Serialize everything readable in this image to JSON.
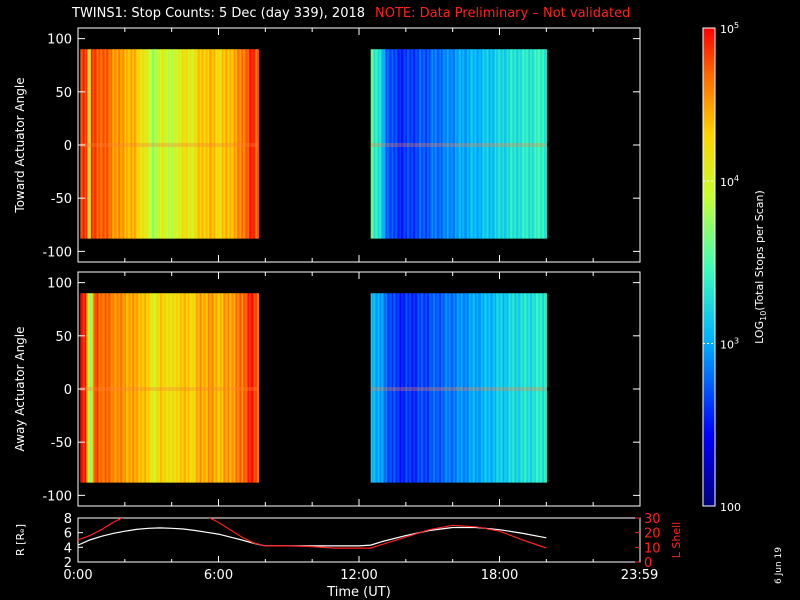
{
  "header": {
    "title": "TWINS1: Stop Counts:  5 Dec (day 339), 2018",
    "note": "NOTE: Data Preliminary – Not validated"
  },
  "footer": {
    "date_stamp": "6 Jun 19"
  },
  "colors": {
    "background": "#000000",
    "axes": "#ffffff",
    "note": "#ff2020",
    "lshell": "#ff2020",
    "radius": "#ffffff"
  },
  "chart_data": [
    {
      "type": "heatmap",
      "ylabel": "Toward Actuator Angle",
      "ylim": [
        -110,
        110
      ],
      "y_ticks": [
        100,
        50,
        0,
        -50,
        -100
      ],
      "xlim": [
        0,
        24
      ],
      "y_data_range": [
        -88,
        90
      ],
      "segments": [
        {
          "t_start": 0.1,
          "t_end": 7.7,
          "profile": [
            [
              0.1,
              0.92
            ],
            [
              0.35,
              0.96
            ],
            [
              0.45,
              0.6
            ],
            [
              0.55,
              0.95
            ],
            [
              0.8,
              0.9
            ],
            [
              1.0,
              0.93
            ],
            [
              1.3,
              0.88
            ],
            [
              1.6,
              0.85
            ],
            [
              2.0,
              0.82
            ],
            [
              2.4,
              0.8
            ],
            [
              2.8,
              0.72
            ],
            [
              3.2,
              0.6
            ],
            [
              3.6,
              0.7
            ],
            [
              4.0,
              0.62
            ],
            [
              4.4,
              0.74
            ],
            [
              4.8,
              0.7
            ],
            [
              5.2,
              0.78
            ],
            [
              5.6,
              0.8
            ],
            [
              6.0,
              0.76
            ],
            [
              6.4,
              0.8
            ],
            [
              6.8,
              0.84
            ],
            [
              7.0,
              0.88
            ],
            [
              7.2,
              0.92
            ],
            [
              7.4,
              0.96
            ],
            [
              7.7,
              0.9
            ]
          ]
        },
        {
          "t_start": 12.5,
          "t_end": 20.0,
          "profile": [
            [
              12.5,
              0.52
            ],
            [
              12.8,
              0.45
            ],
            [
              13.1,
              0.3
            ],
            [
              13.4,
              0.22
            ],
            [
              13.8,
              0.2
            ],
            [
              14.2,
              0.22
            ],
            [
              14.6,
              0.24
            ],
            [
              15.0,
              0.26
            ],
            [
              15.4,
              0.28
            ],
            [
              15.8,
              0.3
            ],
            [
              16.2,
              0.33
            ],
            [
              16.6,
              0.35
            ],
            [
              17.0,
              0.36
            ],
            [
              17.4,
              0.38
            ],
            [
              17.8,
              0.4
            ],
            [
              18.2,
              0.42
            ],
            [
              18.6,
              0.44
            ],
            [
              19.0,
              0.45
            ],
            [
              19.4,
              0.46
            ],
            [
              20.0,
              0.48
            ]
          ]
        }
      ]
    },
    {
      "type": "heatmap",
      "ylabel": "Away Actuator Angle",
      "ylim": [
        -110,
        110
      ],
      "y_ticks": [
        100,
        50,
        0,
        -50,
        -100
      ],
      "xlim": [
        0,
        24
      ],
      "y_data_range": [
        -88,
        90
      ],
      "segments": [
        {
          "t_start": 0.1,
          "t_end": 7.7,
          "profile": [
            [
              0.1,
              0.95
            ],
            [
              0.3,
              0.97
            ],
            [
              0.5,
              0.55
            ],
            [
              0.7,
              0.93
            ],
            [
              1.0,
              0.9
            ],
            [
              1.3,
              0.88
            ],
            [
              1.6,
              0.86
            ],
            [
              2.0,
              0.84
            ],
            [
              2.4,
              0.82
            ],
            [
              2.8,
              0.8
            ],
            [
              3.2,
              0.7
            ],
            [
              3.6,
              0.78
            ],
            [
              4.0,
              0.72
            ],
            [
              4.4,
              0.8
            ],
            [
              4.8,
              0.76
            ],
            [
              5.2,
              0.82
            ],
            [
              5.6,
              0.84
            ],
            [
              6.0,
              0.8
            ],
            [
              6.4,
              0.84
            ],
            [
              6.8,
              0.86
            ],
            [
              7.0,
              0.9
            ],
            [
              7.2,
              0.94
            ],
            [
              7.4,
              0.97
            ],
            [
              7.7,
              0.9
            ]
          ]
        },
        {
          "t_start": 12.5,
          "t_end": 20.0,
          "profile": [
            [
              12.5,
              0.4
            ],
            [
              12.8,
              0.34
            ],
            [
              13.1,
              0.28
            ],
            [
              13.4,
              0.22
            ],
            [
              13.8,
              0.2
            ],
            [
              14.2,
              0.2
            ],
            [
              14.6,
              0.22
            ],
            [
              15.0,
              0.24
            ],
            [
              15.4,
              0.26
            ],
            [
              15.8,
              0.28
            ],
            [
              16.2,
              0.3
            ],
            [
              16.6,
              0.32
            ],
            [
              17.0,
              0.34
            ],
            [
              17.4,
              0.36
            ],
            [
              17.8,
              0.38
            ],
            [
              18.2,
              0.4
            ],
            [
              18.6,
              0.42
            ],
            [
              19.0,
              0.43
            ],
            [
              19.4,
              0.44
            ],
            [
              20.0,
              0.46
            ]
          ]
        }
      ]
    },
    {
      "type": "line",
      "xlabel": "Time (UT)",
      "x_tick_labels": [
        "0:00",
        "6:00",
        "12:00",
        "18:00",
        "23:59"
      ],
      "x_tick_hours": [
        0,
        6,
        12,
        18,
        23.98
      ],
      "xlim": [
        0,
        24
      ],
      "y_left": {
        "label": "R [Rₑ]",
        "ticks": [
          8,
          6,
          4,
          2
        ],
        "ylim": [
          2,
          8
        ]
      },
      "y_right": {
        "label": "L Shell",
        "ticks": [
          30,
          20,
          10,
          0
        ],
        "ylim": [
          0,
          30
        ]
      },
      "series": [
        {
          "axis": "left",
          "color": "#ffffff",
          "points": [
            [
              0,
              4.3
            ],
            [
              0.5,
              5.0
            ],
            [
              1,
              5.5
            ],
            [
              1.5,
              5.9
            ],
            [
              2,
              6.2
            ],
            [
              2.5,
              6.45
            ],
            [
              3,
              6.6
            ],
            [
              3.5,
              6.65
            ],
            [
              4,
              6.6
            ],
            [
              4.5,
              6.5
            ],
            [
              5,
              6.3
            ],
            [
              5.5,
              6.05
            ],
            [
              6,
              5.8
            ],
            [
              6.5,
              5.4
            ],
            [
              7,
              5.0
            ],
            [
              7.5,
              4.55
            ],
            [
              8,
              4.2
            ],
            [
              9,
              4.2
            ],
            [
              10,
              4.2
            ],
            [
              11,
              4.2
            ],
            [
              12,
              4.2
            ],
            [
              12.5,
              4.3
            ],
            [
              13,
              4.8
            ],
            [
              14,
              5.6
            ],
            [
              15,
              6.3
            ],
            [
              16,
              6.7
            ],
            [
              17,
              6.7
            ],
            [
              18,
              6.4
            ],
            [
              19,
              5.9
            ],
            [
              20,
              5.3
            ]
          ]
        },
        {
          "axis": "right",
          "color": "#ff2020",
          "points": [
            [
              0,
              15
            ],
            [
              0.5,
              18
            ],
            [
              1,
              22
            ],
            [
              1.5,
              27
            ],
            [
              2,
              31
            ],
            [
              5.5,
              31
            ],
            [
              6,
              27
            ],
            [
              6.5,
              22
            ],
            [
              7,
              17
            ],
            [
              7.5,
              13
            ],
            [
              8,
              11
            ],
            [
              9,
              11
            ],
            [
              10,
              10.5
            ],
            [
              11,
              9.5
            ],
            [
              12,
              9.5
            ],
            [
              12.5,
              9.5
            ],
            [
              13,
              12
            ],
            [
              14,
              17
            ],
            [
              15,
              22
            ],
            [
              16,
              25
            ],
            [
              17,
              24
            ],
            [
              18,
              21
            ],
            [
              19,
              15
            ],
            [
              20,
              9.5
            ]
          ]
        }
      ]
    }
  ],
  "colorbar": {
    "label": "LOG",
    "label_sub": "10",
    "label_rest": "(Total Stops per Scan)",
    "tick_labels": [
      "10",
      "10",
      "10",
      "100"
    ],
    "tick_exps": [
      "5",
      "4",
      "3",
      ""
    ],
    "tick_fracs": [
      1.0,
      0.68,
      0.34,
      0.0
    ]
  }
}
